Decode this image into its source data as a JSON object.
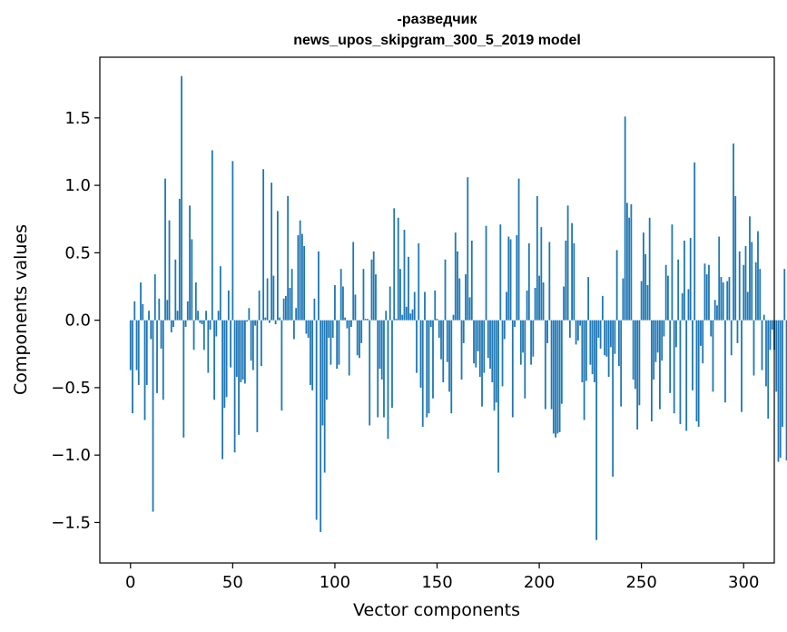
{
  "chart_data": {
    "type": "bar",
    "title_lines": [
      "-разведчик",
      "news_upos_skipgram_300_5_2019 model"
    ],
    "xlabel": "Vector components",
    "ylabel": "Components values",
    "xlim": [
      -15,
      315
    ],
    "ylim": [
      -1.8,
      1.95
    ],
    "xticks": [
      0,
      50,
      100,
      150,
      200,
      250,
      300
    ],
    "yticks": [
      -1.5,
      -1.0,
      -0.5,
      0.0,
      0.5,
      1.0,
      1.5
    ],
    "ytick_labels": [
      "−1.5",
      "−1.0",
      "−0.5",
      "0.0",
      "0.5",
      "1.0",
      "1.5"
    ],
    "bar_color": "#1f77b4",
    "grid": false,
    "values": [
      -0.37,
      -0.69,
      0.14,
      -0.37,
      -0.48,
      0.28,
      0.12,
      -0.74,
      -0.48,
      0.07,
      -0.14,
      -1.42,
      0.34,
      -0.54,
      0.16,
      -0.21,
      -0.59,
      1.05,
      0.15,
      0.74,
      -0.09,
      -0.05,
      0.45,
      0.07,
      0.9,
      1.81,
      -0.87,
      -0.05,
      0.14,
      0.85,
      0.6,
      -0.22,
      0.28,
      0.07,
      -0.02,
      -0.03,
      -0.22,
      0.07,
      -0.39,
      -0.07,
      1.26,
      -0.59,
      -0.12,
      0.07,
      0.4,
      -1.03,
      -0.65,
      -0.57,
      0.22,
      -0.35,
      1.18,
      -0.98,
      -0.42,
      -0.85,
      -0.46,
      -0.44,
      -0.47,
      -0.01,
      0.09,
      -0.3,
      -0.37,
      -0.04,
      -0.83,
      0.22,
      -0.34,
      1.12,
      0.02,
      0.31,
      -0.02,
      1.02,
      0.33,
      -0.03,
      0.81,
      0.02,
      -0.67,
      0.16,
      0.18,
      0.92,
      0.24,
      0.38,
      -0.14,
      0.09,
      0.63,
      0.74,
      0.64,
      0.55,
      -0.1,
      -0.13,
      -0.48,
      -0.52,
      0.16,
      -1.48,
      0.51,
      -1.57,
      -0.78,
      -1.13,
      -0.59,
      -0.13,
      -0.33,
      -0.13,
      0.26,
      -0.36,
      -0.33,
      0.38,
      0.25,
      0.02,
      -0.06,
      -0.41,
      -0.05,
      0.58,
      0.19,
      -0.26,
      -0.28,
      -0.17,
      0.38,
      0.01,
      0.01,
      -0.78,
      0.45,
      0.51,
      0.34,
      -0.72,
      -0.36,
      -0.44,
      -0.72,
      0.07,
      -0.88,
      0.25,
      -0.65,
      0.83,
      0.01,
      0.76,
      0.38,
      0.04,
      0.67,
      0.1,
      0.47,
      0.05,
      0.08,
      0.21,
      -0.39,
      0.57,
      -0.5,
      -0.79,
      0.21,
      -0.72,
      -0.69,
      -0.05,
      -0.58,
      0.22,
      0.01,
      -0.13,
      -0.29,
      -0.46,
      0.45,
      -0.31,
      -0.53,
      -0.69,
      0.04,
      0.65,
      0.51,
      0.31,
      -0.44,
      -0.17,
      0.34,
      1.06,
      0.17,
      0.59,
      -0.32,
      -0.35,
      -0.23,
      -0.42,
      -0.64,
      -0.39,
      0.7,
      -0.28,
      -0.36,
      -0.46,
      -0.67,
      -0.61,
      -1.13,
      0.71,
      -0.49,
      -0.14,
      0.21,
      0.62,
      0.6,
      -0.72,
      -0.05,
      0.63,
      1.05,
      -0.33,
      -0.24,
      -0.58,
      0.22,
      0.57,
      -0.33,
      -0.27,
      0.24,
      0.92,
      0.33,
      0.69,
      0.28,
      -0.66,
      -0.17,
      0.58,
      -0.66,
      -0.84,
      -0.87,
      -0.84,
      -0.83,
      -0.62,
      0.25,
      0.59,
      0.85,
      -0.13,
      0.72,
      0.57,
      -0.18,
      -0.15,
      -0.04,
      -0.46,
      -0.74,
      -0.45,
      0.32,
      -0.33,
      -0.4,
      -0.46,
      -1.63,
      -0.13,
      -0.21,
      0.18,
      -0.26,
      -0.27,
      -0.42,
      -0.2,
      -1.16,
      -0.25,
      0.52,
      -0.34,
      -0.64,
      0.31,
      1.51,
      0.87,
      0.76,
      0.86,
      -0.44,
      -0.51,
      -0.81,
      -0.63,
      0.29,
      0.65,
      0.49,
      0.26,
      0.76,
      -0.75,
      -0.44,
      -0.31,
      -0.24,
      -0.66,
      -0.3,
      -0.12,
      0.41,
      0.33,
      -0.54,
      0.71,
      -0.69,
      -0.2,
      0.45,
      -0.77,
      0.2,
      0.59,
      -0.82,
      0.23,
      0.61,
      -0.52,
      1.17,
      -0.75,
      -0.79,
      -0.19,
      -0.32,
      0.42,
      0.34,
      0.41,
      -0.12,
      -0.53,
      0.15,
      0.11,
      0.62,
      0.32,
      0.28,
      -0.61,
      0.29,
      0.32,
      -0.26,
      1.31,
      0.92,
      -0.17,
      0.51,
      -0.68,
      0.41,
      0.55,
      0.21,
      0.77,
      0.58,
      -0.41,
      0.43,
      0.66,
      0.38,
      -0.37,
      0.04,
      -0.49,
      -0.73,
      -0.22,
      -0.07,
      -0.22,
      -0.53,
      -1.05,
      -1.02,
      -0.79,
      0.38,
      -1.04,
      -0.01
    ]
  }
}
